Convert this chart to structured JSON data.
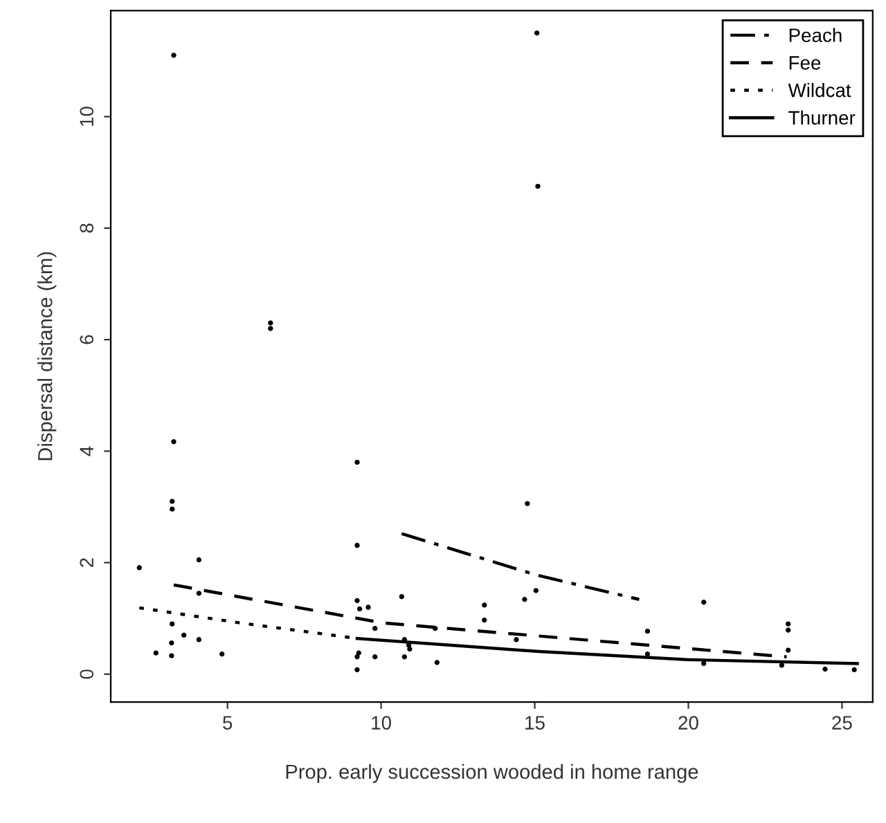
{
  "chart_data": {
    "type": "scatter",
    "xlabel": "Prop. early succession wooded in home range",
    "ylabel": "Dispersal distance (km)",
    "xlim": [
      1.2,
      26
    ],
    "ylim": [
      -0.5,
      11.9
    ],
    "xticks": [
      5,
      10,
      15,
      20,
      25
    ],
    "yticks": [
      0,
      2,
      4,
      6,
      8,
      10
    ],
    "grid": false,
    "legend": "top right",
    "series": [
      {
        "color": "#000000",
        "marker": "circle",
        "x": [
          2.13,
          2.67,
          3.18,
          3.18,
          3.25,
          3.2,
          3.2,
          3.2,
          3.58,
          4.07,
          4.07,
          4.07,
          4.82,
          9.22,
          9.22,
          9.22,
          9.3,
          9.58,
          9.22,
          9.22,
          9.27,
          9.8,
          9.8,
          10.67,
          10.76,
          10.76,
          10.9,
          10.93,
          11.76,
          11.82,
          13.36,
          13.36,
          14.4,
          14.67,
          14.76,
          15.04,
          18.67,
          18.67,
          20.5,
          20.5,
          23.04,
          23.25,
          23.25,
          23.25,
          24.45,
          25.4,
          3.25,
          15.07,
          15.1,
          6.4,
          6.4
        ],
        "values": [
          1.91,
          0.38,
          0.33,
          0.56,
          4.17,
          3.1,
          2.96,
          0.9,
          0.7,
          2.05,
          1.45,
          0.62,
          0.36,
          3.8,
          2.31,
          1.32,
          1.17,
          1.2,
          0.31,
          0.08,
          0.38,
          0.82,
          0.31,
          1.39,
          0.62,
          0.31,
          0.52,
          0.45,
          0.82,
          0.21,
          1.24,
          0.97,
          0.62,
          1.34,
          3.06,
          1.5,
          0.77,
          0.36,
          1.29,
          0.19,
          0.16,
          0.9,
          0.79,
          0.43,
          0.09,
          0.08,
          11.1,
          11.5,
          8.75,
          6.3,
          6.2
        ]
      },
      {
        "type": "line",
        "name": "Peach",
        "color": "#000000",
        "line_style": "dashdot",
        "x": [
          10.67,
          15.04,
          18.4
        ],
        "values": [
          2.52,
          1.78,
          1.34
        ]
      },
      {
        "type": "line",
        "name": "Fee",
        "color": "#000000",
        "line_style": "dashed",
        "x": [
          3.25,
          10.04,
          23.2
        ],
        "values": [
          1.6,
          0.92,
          0.31
        ]
      },
      {
        "type": "line",
        "name": "Wildcat",
        "color": "#000000",
        "line_style": "dotted",
        "x": [
          2.13,
          5.4,
          9.22
        ],
        "values": [
          1.19,
          0.92,
          0.64
        ]
      },
      {
        "type": "line",
        "name": "Thurner",
        "color": "#000000",
        "line_style": "solid",
        "x": [
          9.22,
          15.04,
          19.95,
          25.5
        ],
        "values": [
          0.64,
          0.41,
          0.26,
          0.19
        ]
      }
    ]
  }
}
